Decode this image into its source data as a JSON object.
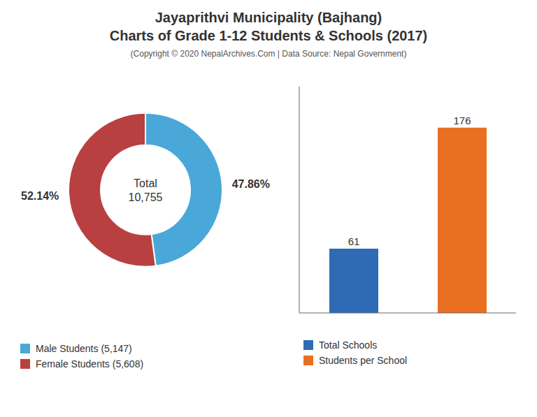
{
  "title": "Jayaprithvi Municipality (Bajhang)",
  "subtitle": "Charts of Grade 1-12 Students & Schools (2017)",
  "annotations": [
    "(Copyright © 2020 NepalArchives.Com | Data Source: Nepal Government)"
  ],
  "chart_data": [
    {
      "type": "pie",
      "categories": [
        "Male Students (5,147)",
        "Female Students (5,608)"
      ],
      "values": [
        47.86,
        52.14
      ],
      "value_labels": [
        "47.86%",
        "52.14%"
      ],
      "colors": [
        "#4AA8D8",
        "#B94040"
      ],
      "data_labels": true,
      "annotations": [
        "Total\n10,755"
      ],
      "legend": "bottom"
    },
    {
      "type": "bar",
      "categories": [
        "Total Schools",
        "Students per School"
      ],
      "values": [
        61,
        176
      ],
      "colors": [
        "#2F6BB5",
        "#E87020"
      ],
      "ylim": [
        0,
        215
      ],
      "data_labels": true,
      "tick_labels": false,
      "legend": "bottom"
    }
  ]
}
